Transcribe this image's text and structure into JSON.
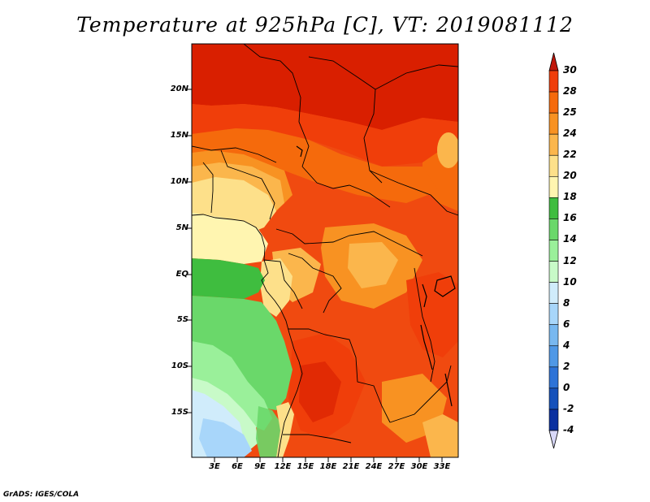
{
  "title": "Temperature at 925hPa [C], VT: 2019081112",
  "credit": "GrADS: IGES/COLA",
  "lat_labels": [
    "20N",
    "15N",
    "10N",
    "5N",
    "EQ",
    "5S",
    "10S",
    "15S"
  ],
  "lon_labels": [
    "3E",
    "6E",
    "9E",
    "12E",
    "15E",
    "18E",
    "21E",
    "24E",
    "27E",
    "30E",
    "33E"
  ],
  "colorbar": {
    "labels": [
      "30",
      "28",
      "25",
      "24",
      "22",
      "20",
      "18",
      "16",
      "14",
      "12",
      "10",
      "8",
      "6",
      "4",
      "2",
      "0",
      "-2",
      "-4"
    ],
    "colors": [
      "#d91f00",
      "#f03e0a",
      "#f56a0c",
      "#f89222",
      "#fbb64c",
      "#fde08a",
      "#fff5b0",
      "#3fbd3f",
      "#6ad86a",
      "#9af09a",
      "#c8fac8",
      "#d0ecfb",
      "#a8d6fa",
      "#78b8f0",
      "#4f98e6",
      "#2d73d7",
      "#1551bb",
      "#0a30a0",
      "#07126a"
    ],
    "top_arrow_color": "#c0160a",
    "bottom_arrow_color": "#d8d8f8"
  },
  "chart_data": {
    "type": "heatmap",
    "title": "Temperature at 925hPa [C], VT: 2019081112",
    "variable": "Temperature at 925hPa",
    "units": "C",
    "valid_time": "2019081112",
    "lon_range": [
      0,
      35
    ],
    "lat_range": [
      -19,
      25
    ],
    "x_ticks": [
      "3E",
      "6E",
      "9E",
      "12E",
      "15E",
      "18E",
      "21E",
      "24E",
      "27E",
      "30E",
      "33E"
    ],
    "y_ticks": [
      "20N",
      "15N",
      "10N",
      "5N",
      "EQ",
      "5S",
      "10S",
      "15S"
    ],
    "contour_levels": [
      -4,
      -2,
      0,
      2,
      4,
      6,
      8,
      10,
      12,
      14,
      16,
      18,
      20,
      22,
      24,
      25,
      28,
      30
    ]
  }
}
